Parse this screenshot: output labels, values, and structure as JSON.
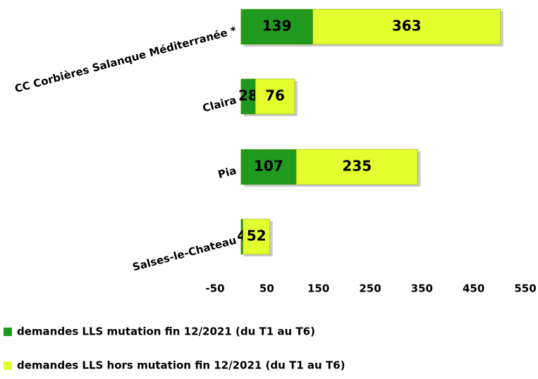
{
  "chart_data": {
    "type": "bar",
    "orientation": "horizontal",
    "stacked": true,
    "categories": [
      "CC Corbières Salanque Méditerranée *",
      "Claira",
      "Pia",
      "Salses-le-Chateau"
    ],
    "series": [
      {
        "name": "demandes LLS mutation fin 12/2021 (du T1 au T6)",
        "color": "#1f9a1f",
        "values": [
          139,
          28,
          107,
          4
        ]
      },
      {
        "name": "demandes LLS hors mutation fin 12/2021 (du T1 au T6)",
        "color": "#e4ff2e",
        "values": [
          363,
          76,
          235,
          52
        ]
      }
    ],
    "xlim": [
      -50,
      550
    ],
    "xticks": [
      -50,
      50,
      150,
      250,
      350,
      450,
      550
    ],
    "grid": false,
    "legend": "bottom"
  }
}
